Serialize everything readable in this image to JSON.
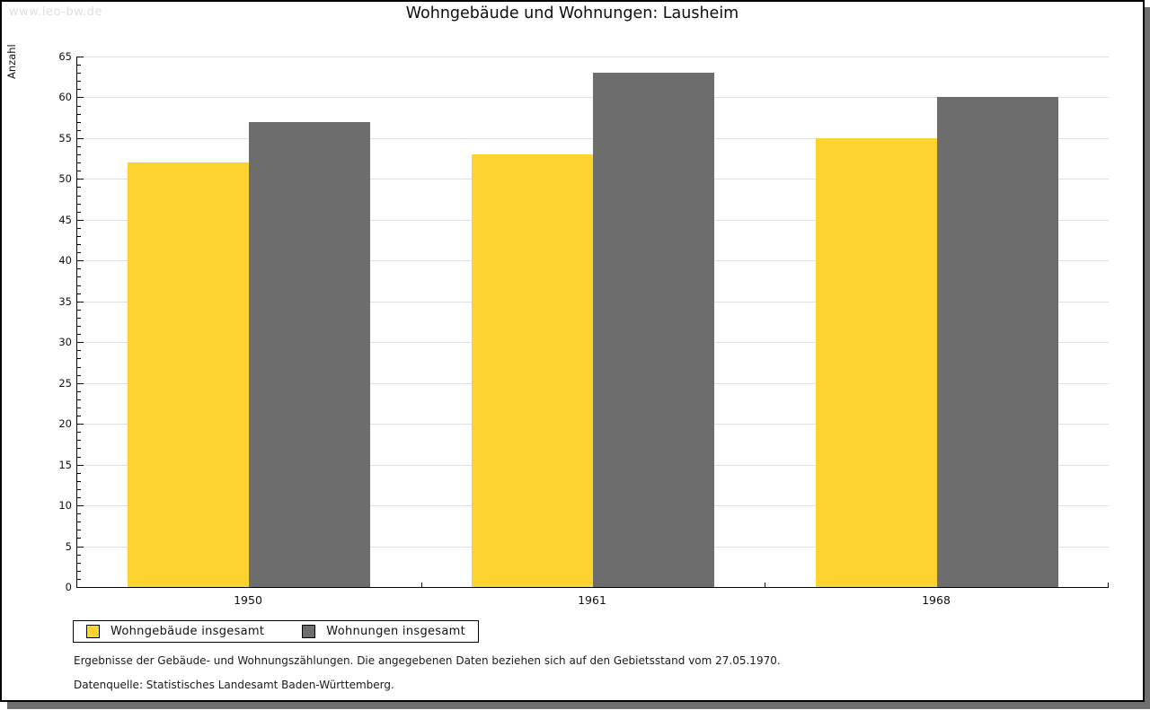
{
  "watermark": "www.leo-bw.de",
  "chart_data": {
    "type": "bar",
    "title": "Wohngebäude und Wohnungen: Lausheim",
    "xlabel": "",
    "ylabel": "Anzahl",
    "categories": [
      "1950",
      "1961",
      "1968"
    ],
    "series": [
      {
        "name": "Wohngebäude insgesamt",
        "color": "#fdd330",
        "values": [
          52,
          53,
          55
        ]
      },
      {
        "name": "Wohnungen insgesamt",
        "color": "#6d6d6d",
        "values": [
          57,
          63,
          60
        ]
      }
    ],
    "ylim": [
      0,
      65
    ],
    "y_major_step": 5,
    "y_minor_step": 1,
    "grid": "horizontal-major",
    "legend_position": "bottom-left",
    "bar_edge": "none"
  },
  "footnotes": [
    "Ergebnisse der Gebäude- und Wohnungszählungen. Die angegebenen Daten beziehen sich auf den Gebietsstand vom 27.05.1970.",
    "Datenquelle: Statistisches Landesamt Baden-Württemberg."
  ],
  "colors": {
    "bar_yellow": "#fdd330",
    "bar_gray": "#6d6d6d",
    "gridline": "#e0e0e0",
    "axis": "#000000",
    "watermark": "#dfdfdf",
    "frame_border": "#000000",
    "frame_shadow": "#6f6f6f",
    "background": "#ffffff"
  }
}
